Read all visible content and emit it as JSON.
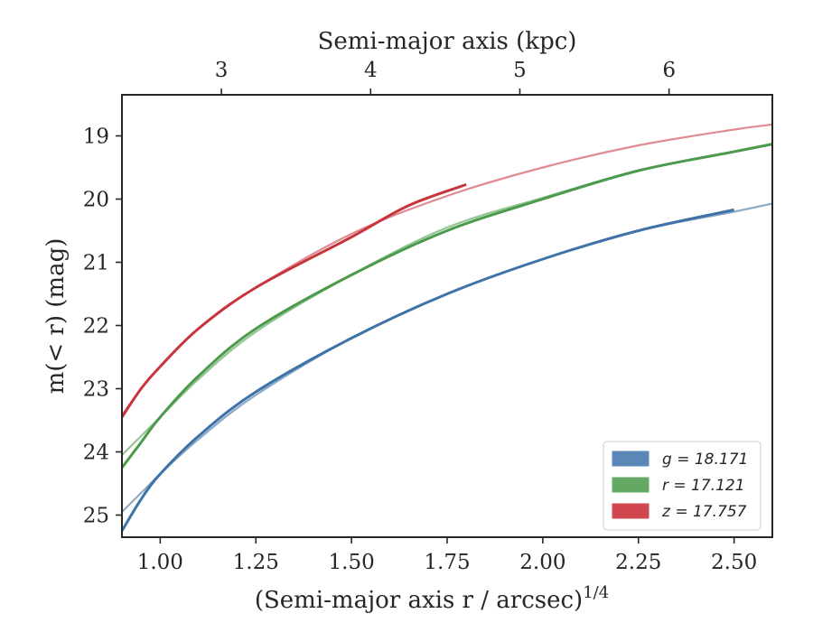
{
  "chart_data": {
    "type": "line",
    "xlabel": "(Semi-major axis r / arcsec)",
    "xlabel_superscript": "1/4",
    "ylabel": "m(< r) (mag)",
    "top_xlabel": "Semi-major axis (kpc)",
    "xlim": [
      0.9,
      2.6
    ],
    "ylim": [
      25.35,
      18.35
    ],
    "y_inverted": true,
    "x_ticks": [
      "1.00",
      "1.25",
      "1.50",
      "1.75",
      "2.00",
      "2.25",
      "2.50"
    ],
    "y_ticks": [
      "19",
      "20",
      "21",
      "22",
      "23",
      "24",
      "25"
    ],
    "top_ticks": [
      "3",
      "4",
      "5",
      "6"
    ],
    "top_tick_positions_x": [
      1.16,
      1.55,
      1.94,
      2.33
    ],
    "grid": false,
    "legend_position": "bottom-right",
    "legend": [
      {
        "label": "g = 18.171",
        "color": "#5b87b6"
      },
      {
        "label": "r = 17.121",
        "color": "#63a963"
      },
      {
        "label": "z = 17.757",
        "color": "#d1474f"
      }
    ],
    "series": [
      {
        "band": "g",
        "color": "#3f73a8",
        "model_color": "#8eaac6",
        "data_x": [
          0.9,
          0.95,
          1.0,
          1.1,
          1.25,
          1.5,
          1.75,
          2.0,
          2.25,
          2.5
        ],
        "data_y": [
          25.25,
          24.75,
          24.35,
          23.75,
          23.05,
          22.2,
          21.5,
          20.95,
          20.5,
          20.17
        ],
        "model_x": [
          0.9,
          0.95,
          1.0,
          1.1,
          1.25,
          1.5,
          1.75,
          2.0,
          2.25,
          2.5,
          2.6
        ],
        "model_y": [
          24.95,
          24.65,
          24.35,
          23.8,
          23.1,
          22.2,
          21.5,
          20.95,
          20.5,
          20.2,
          20.07
        ]
      },
      {
        "band": "r",
        "color": "#4c9a4c",
        "model_color": "#94c594",
        "data_x": [
          0.9,
          0.95,
          1.0,
          1.1,
          1.25,
          1.5,
          1.75,
          2.0,
          2.25,
          2.5,
          2.6
        ],
        "data_y": [
          24.25,
          23.85,
          23.45,
          22.8,
          22.05,
          21.2,
          20.5,
          20.0,
          19.55,
          19.25,
          19.13
        ],
        "model_x": [
          0.9,
          0.95,
          1.0,
          1.1,
          1.25,
          1.5,
          1.75,
          2.0,
          2.25,
          2.5,
          2.6
        ],
        "model_y": [
          24.05,
          23.75,
          23.45,
          22.85,
          22.1,
          21.2,
          20.45,
          19.98,
          19.55,
          19.25,
          19.13
        ]
      },
      {
        "band": "z",
        "color": "#c9343c",
        "model_color": "#de8c91",
        "data_x": [
          0.9,
          0.95,
          1.0,
          1.1,
          1.25,
          1.5,
          1.65,
          1.8
        ],
        "data_y": [
          23.45,
          23.0,
          22.65,
          22.05,
          21.4,
          20.6,
          20.1,
          19.77
        ],
        "model_x": [
          0.9,
          0.95,
          1.0,
          1.1,
          1.25,
          1.5,
          1.75,
          2.0,
          2.25,
          2.5,
          2.6
        ],
        "model_y": [
          23.42,
          23.0,
          22.65,
          22.05,
          21.4,
          20.55,
          19.95,
          19.5,
          19.15,
          18.9,
          18.82
        ]
      }
    ]
  }
}
